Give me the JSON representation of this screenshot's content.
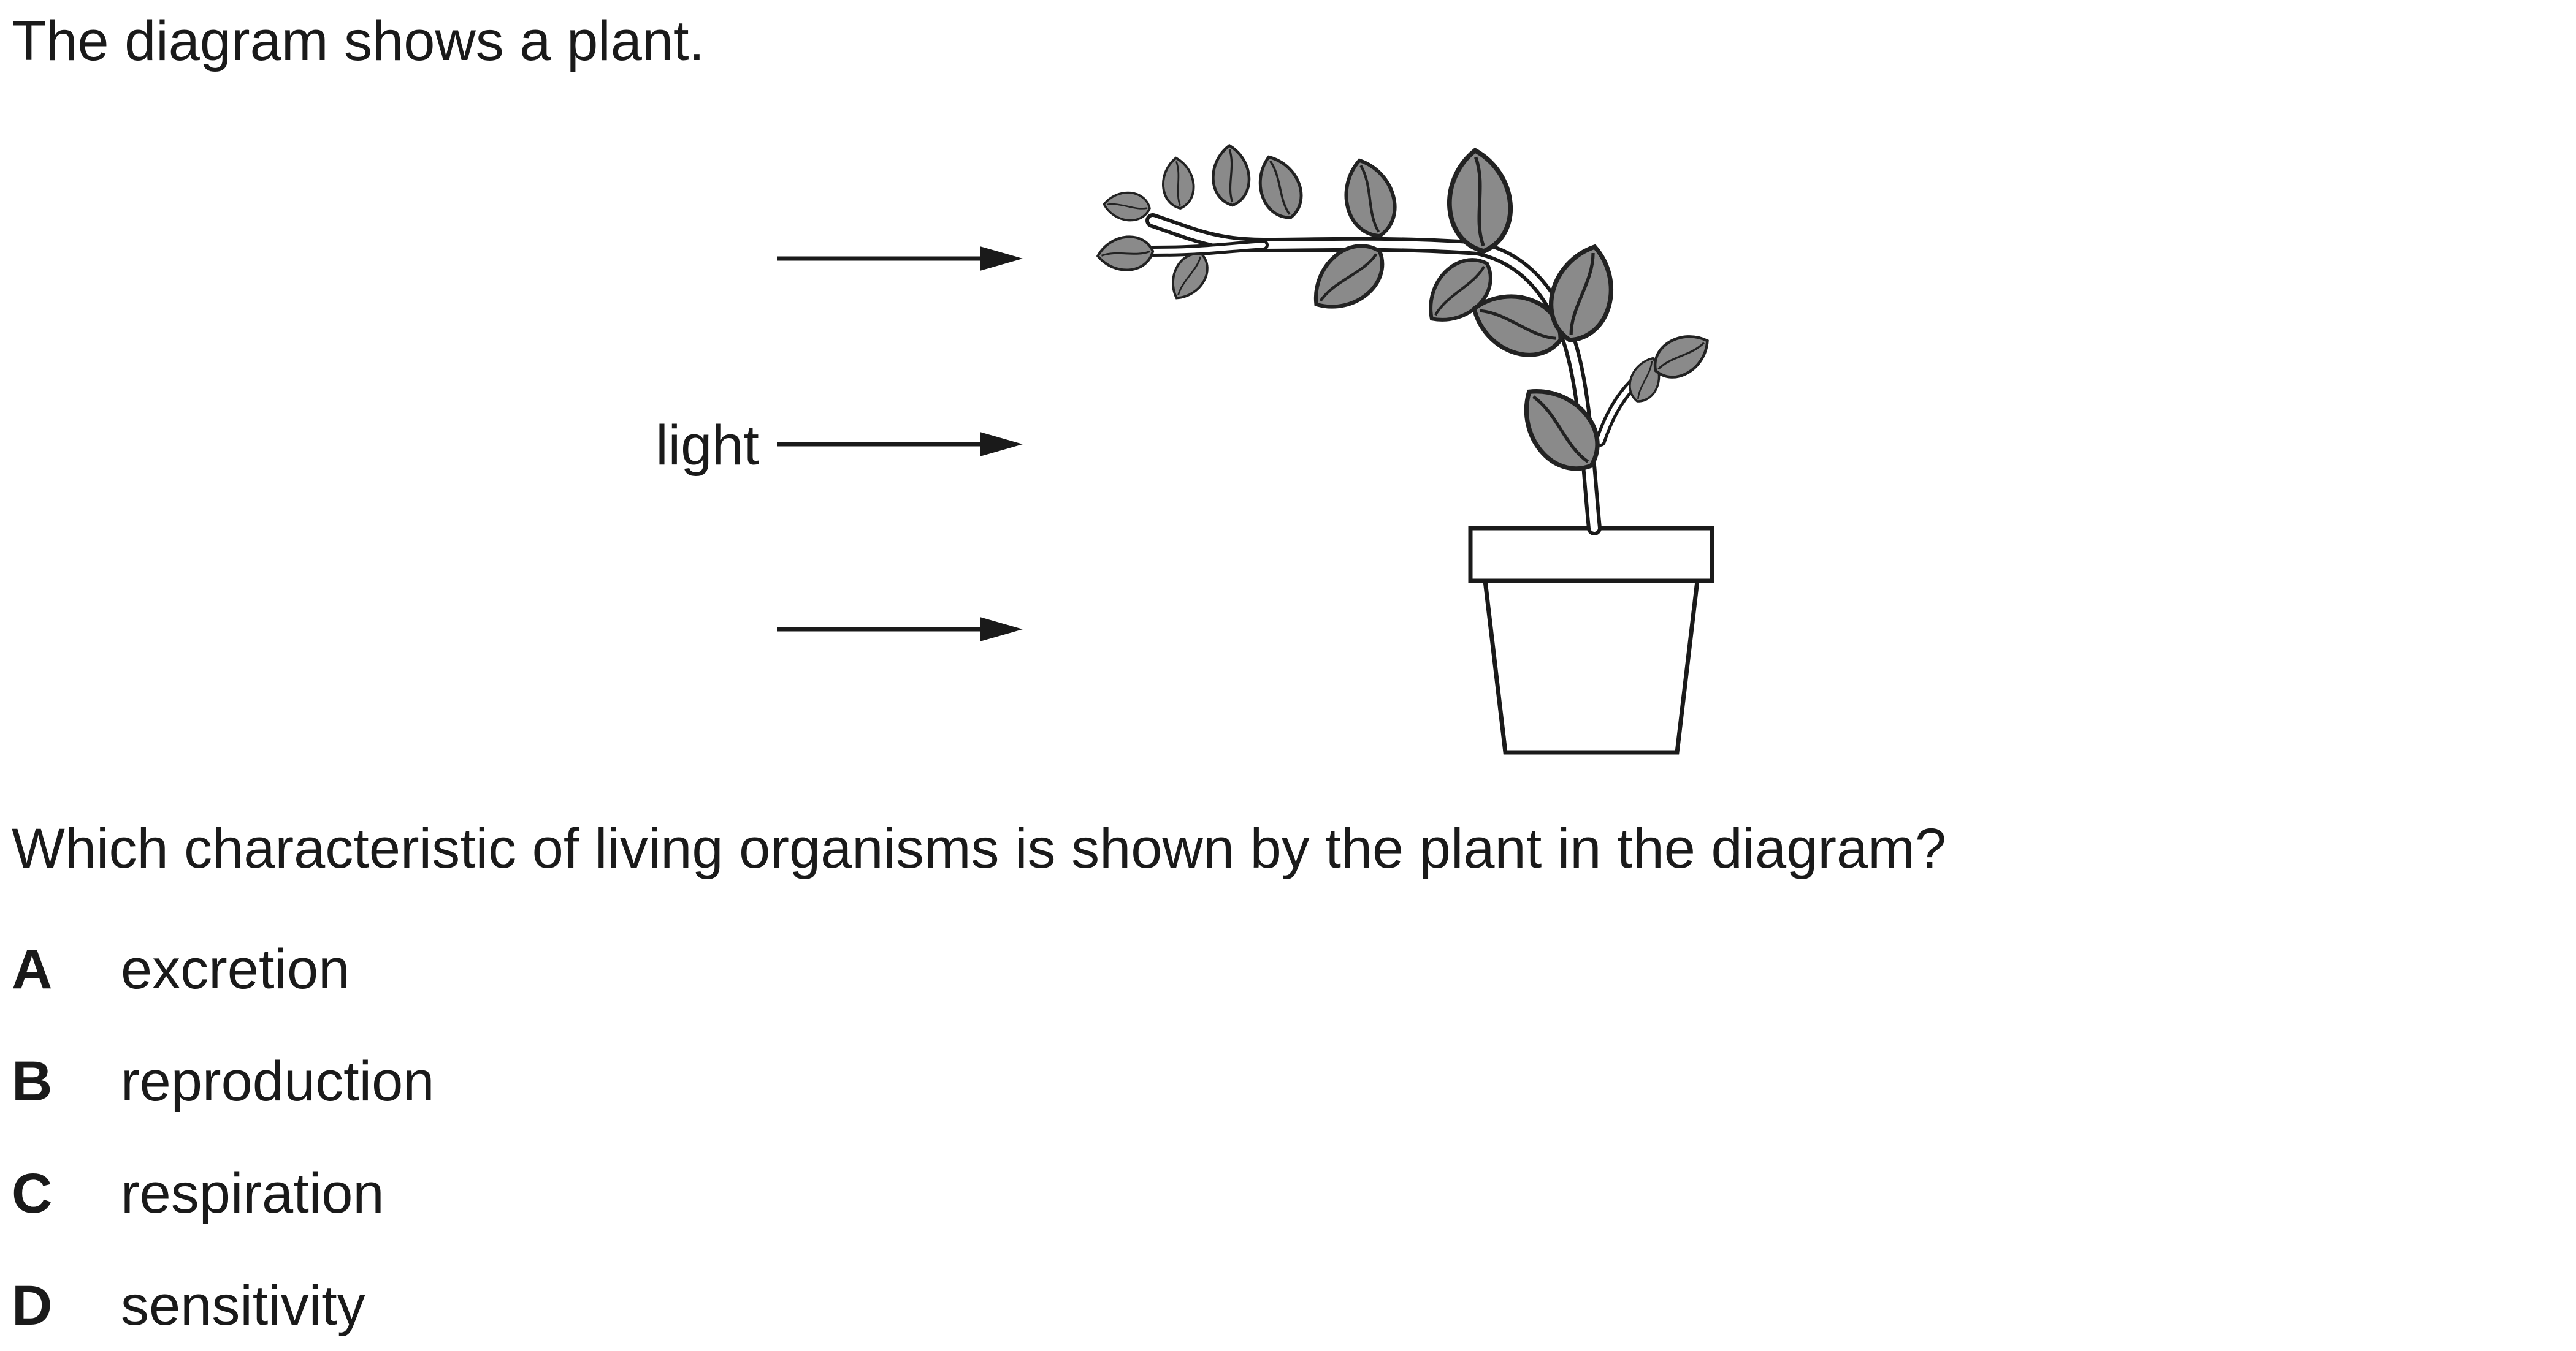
{
  "intro": "The diagram shows a plant.",
  "diagram": {
    "light_label": "light",
    "icons": [
      "arrow-icon",
      "plant-icon",
      "pot-icon",
      "leaf-icon"
    ]
  },
  "question": "Which characteristic of living organisms is shown by the plant in the diagram?",
  "options": [
    {
      "letter": "A",
      "text": "excretion"
    },
    {
      "letter": "B",
      "text": "reproduction"
    },
    {
      "letter": "C",
      "text": "respiration"
    },
    {
      "letter": "D",
      "text": "sensitivity"
    }
  ]
}
